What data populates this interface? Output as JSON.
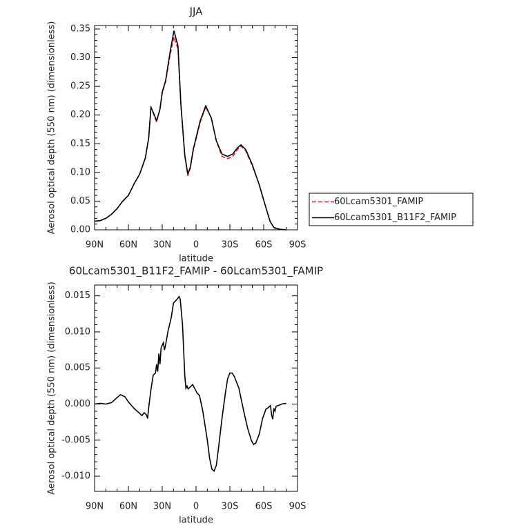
{
  "chart_data": [
    {
      "type": "line",
      "title": "JJA",
      "xlabel": "latitude",
      "ylabel": "Aerosol optical depth (550 nm) (dimensionless)",
      "x": [
        90,
        85,
        80,
        75,
        70,
        65,
        60,
        55,
        50,
        45,
        42,
        40,
        38,
        35,
        32,
        30,
        27,
        23,
        19.6,
        16,
        13.5,
        10,
        7.3,
        5,
        2.5,
        0,
        -3.7,
        -8.6,
        -13.5,
        -18,
        -23,
        -28,
        -32.5,
        -36.8,
        -39.8,
        -44,
        -49.6,
        -55.8,
        -61,
        -65.6,
        -69,
        -74,
        -80
      ],
      "series": [
        {
          "name": "60Lcam5301_FAMIP",
          "color": "#e41a1c",
          "style": "dashed",
          "values": [
            0.015,
            0.016,
            0.02,
            0.027,
            0.037,
            0.05,
            0.06,
            0.08,
            0.097,
            0.125,
            0.16,
            0.215,
            0.203,
            0.188,
            0.21,
            0.238,
            0.258,
            0.305,
            0.336,
            0.315,
            0.22,
            0.13,
            0.094,
            0.108,
            0.138,
            0.158,
            0.188,
            0.214,
            0.195,
            0.155,
            0.128,
            0.124,
            0.128,
            0.14,
            0.146,
            0.138,
            0.113,
            0.08,
            0.045,
            0.015,
            0.004,
            0.001,
            0
          ]
        },
        {
          "name": "60Lcam5301_B11F2_FAMIP",
          "color": "#000000",
          "style": "solid",
          "values": [
            0.015,
            0.016,
            0.02,
            0.027,
            0.037,
            0.05,
            0.06,
            0.08,
            0.097,
            0.125,
            0.16,
            0.213,
            0.205,
            0.19,
            0.21,
            0.24,
            0.26,
            0.31,
            0.347,
            0.32,
            0.22,
            0.13,
            0.097,
            0.11,
            0.14,
            0.16,
            0.19,
            0.216,
            0.195,
            0.155,
            0.132,
            0.128,
            0.132,
            0.143,
            0.148,
            0.14,
            0.115,
            0.08,
            0.045,
            0.015,
            0.004,
            0.001,
            0
          ]
        }
      ],
      "xlim": [
        90,
        -90
      ],
      "xticks": [
        {
          "value": 90,
          "label": "90N"
        },
        {
          "value": 60,
          "label": "60N"
        },
        {
          "value": 30,
          "label": "30N"
        },
        0,
        {
          "value": -30,
          "label": "30S"
        },
        {
          "value": -60,
          "label": "60S"
        },
        {
          "value": -90,
          "label": "90S"
        }
      ],
      "ylim": [
        0,
        0.356
      ],
      "yticks": [
        {
          "value": 0,
          "label": "0.00"
        },
        0.05,
        {
          "value": 0.1,
          "label": "0.10"
        },
        0.15,
        {
          "value": 0.2,
          "label": "0.20"
        },
        0.25,
        {
          "value": 0.3,
          "label": "0.30"
        },
        0.35
      ],
      "legend": "right"
    },
    {
      "type": "line",
      "title": "60Lcam5301_B11F2_FAMIP - 60Lcam5301_FAMIP",
      "xlabel": "latitude",
      "ylabel": "Aerosol optical depth (550 nm) (dimensionless)",
      "x": [
        90,
        85,
        80,
        75,
        70,
        67,
        63,
        60,
        55,
        50,
        48,
        46,
        44,
        43,
        42,
        40,
        38,
        36,
        35,
        34,
        33,
        32,
        31,
        29,
        28,
        27,
        25,
        22,
        20,
        17,
        15,
        14,
        12,
        10,
        9,
        8,
        7,
        5,
        3,
        1,
        -1,
        -3,
        -4,
        -6,
        -8,
        -10,
        -12,
        -14,
        -16,
        -18,
        -20,
        -23,
        -26,
        -28,
        -30,
        -32,
        -34,
        -36,
        -38,
        -40,
        -43,
        -46,
        -49,
        -51,
        -53,
        -56,
        -59,
        -62,
        -64,
        -66,
        -67,
        -68,
        -69,
        -70,
        -71,
        -73,
        -76,
        -80
      ],
      "series": [
        {
          "name": "60Lcam5301_B11F2_FAMIP - 60Lcam5301_FAMIP",
          "color": "#000000",
          "style": "solid",
          "values": [
            0,
            0.0001,
            0,
            0.0002,
            0.0009,
            0.0013,
            0.001,
            0.0003,
            -0.0006,
            -0.0013,
            -0.0016,
            -0.0012,
            -0.0015,
            -0.002,
            -0.0005,
            0.002,
            0.004,
            0.0043,
            0.0055,
            0.0045,
            0.007,
            0.0055,
            0.0078,
            0.0085,
            0.0075,
            0.0082,
            0.01,
            0.012,
            0.014,
            0.0145,
            0.0149,
            0.0145,
            0.011,
            0.004,
            0.0022,
            0.0025,
            0.0021,
            0.0024,
            0.0027,
            0.0021,
            0.0015,
            0.0012,
            0.0005,
            -0.001,
            -0.003,
            -0.005,
            -0.0075,
            -0.009,
            -0.0093,
            -0.0085,
            -0.006,
            -0.002,
            0.0015,
            0.0035,
            0.0043,
            0.0043,
            0.0038,
            0.003,
            0.0022,
            0.0007,
            -0.0015,
            -0.0035,
            -0.005,
            -0.0056,
            -0.0054,
            -0.0042,
            -0.002,
            -0.0007,
            -0.0005,
            -0.0002,
            -0.0015,
            -0.0021,
            -0.0006,
            -0.001,
            -0.0003,
            -0.0002,
            0,
            0.0001
          ]
        }
      ],
      "xlim": [
        90,
        -90
      ],
      "xticks": [
        {
          "value": 90,
          "label": "90N"
        },
        {
          "value": 60,
          "label": "60N"
        },
        {
          "value": 30,
          "label": "30N"
        },
        0,
        {
          "value": -30,
          "label": "30S"
        },
        {
          "value": -60,
          "label": "60S"
        },
        {
          "value": -90,
          "label": "90S"
        }
      ],
      "ylim": [
        -0.0121,
        0.0165
      ],
      "yticks": [
        {
          "value": -0.01,
          "label": "-0.010"
        },
        -0.005,
        {
          "value": 0,
          "label": "0.000"
        },
        0.005,
        {
          "value": 0.01,
          "label": "0.010"
        },
        0.015
      ]
    }
  ]
}
